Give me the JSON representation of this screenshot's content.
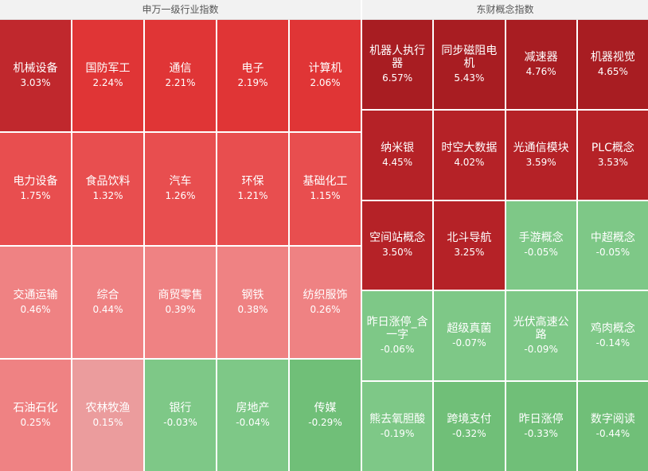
{
  "chart_data": [
    {
      "type": "heatmap",
      "title": "申万一级行业指数",
      "cells": [
        {
          "name": "机械设备",
          "value": "3.03%",
          "color": "#c0282d"
        },
        {
          "name": "国防军工",
          "value": "2.24%",
          "color": "#e03536"
        },
        {
          "name": "通信",
          "value": "2.21%",
          "color": "#e03536"
        },
        {
          "name": "电子",
          "value": "2.19%",
          "color": "#e03536"
        },
        {
          "name": "计算机",
          "value": "2.06%",
          "color": "#e03536"
        },
        {
          "name": "电力设备",
          "value": "1.75%",
          "color": "#e84e4f"
        },
        {
          "name": "食品饮料",
          "value": "1.32%",
          "color": "#e84e4f"
        },
        {
          "name": "汽车",
          "value": "1.26%",
          "color": "#e84e4f"
        },
        {
          "name": "环保",
          "value": "1.21%",
          "color": "#e84e4f"
        },
        {
          "name": "基础化工",
          "value": "1.15%",
          "color": "#e84e4f"
        },
        {
          "name": "交通运输",
          "value": "0.46%",
          "color": "#ef8283"
        },
        {
          "name": "综合",
          "value": "0.44%",
          "color": "#ef8283"
        },
        {
          "name": "商贸零售",
          "value": "0.39%",
          "color": "#ef8283"
        },
        {
          "name": "钢铁",
          "value": "0.38%",
          "color": "#ef8283"
        },
        {
          "name": "纺织服饰",
          "value": "0.26%",
          "color": "#ef8283"
        },
        {
          "name": "石油石化",
          "value": "0.25%",
          "color": "#ef8283"
        },
        {
          "name": "农林牧渔",
          "value": "0.15%",
          "color": "#eb9c9d"
        },
        {
          "name": "银行",
          "value": "-0.03%",
          "color": "#7ec887"
        },
        {
          "name": "房地产",
          "value": "-0.04%",
          "color": "#7ec887"
        },
        {
          "name": "传媒",
          "value": "-0.29%",
          "color": "#70bf78"
        }
      ]
    },
    {
      "type": "heatmap",
      "title": "东财概念指数",
      "cells": [
        {
          "name": "机器人执行器",
          "value": "6.57%",
          "color": "#a81d22"
        },
        {
          "name": "同步磁阻电机",
          "value": "5.43%",
          "color": "#a81d22"
        },
        {
          "name": "减速器",
          "value": "4.76%",
          "color": "#a81d22"
        },
        {
          "name": "机器视觉",
          "value": "4.65%",
          "color": "#a81d22"
        },
        {
          "name": "纳米银",
          "value": "4.45%",
          "color": "#b52227"
        },
        {
          "name": "时空大数据",
          "value": "4.02%",
          "color": "#b52227"
        },
        {
          "name": "光通信模块",
          "value": "3.59%",
          "color": "#b52227"
        },
        {
          "name": "PLC概念",
          "value": "3.53%",
          "color": "#b52227"
        },
        {
          "name": "空间站概念",
          "value": "3.50%",
          "color": "#b52227"
        },
        {
          "name": "北斗导航",
          "value": "3.25%",
          "color": "#b52227"
        },
        {
          "name": "手游概念",
          "value": "-0.05%",
          "color": "#7ec887"
        },
        {
          "name": "中超概念",
          "value": "-0.05%",
          "color": "#7ec887"
        },
        {
          "name": "昨日涨停_含一字",
          "value": "-0.06%",
          "color": "#7ec887"
        },
        {
          "name": "超级真菌",
          "value": "-0.07%",
          "color": "#7ec887"
        },
        {
          "name": "光伏高速公路",
          "value": "-0.09%",
          "color": "#7ec887"
        },
        {
          "name": "鸡肉概念",
          "value": "-0.14%",
          "color": "#7ec887"
        },
        {
          "name": "熊去氧胆酸",
          "value": "-0.19%",
          "color": "#7ec887"
        },
        {
          "name": "跨境支付",
          "value": "-0.32%",
          "color": "#70bf78"
        },
        {
          "name": "昨日涨停",
          "value": "-0.33%",
          "color": "#70bf78"
        },
        {
          "name": "数字阅读",
          "value": "-0.44%",
          "color": "#70bf78"
        }
      ]
    }
  ]
}
